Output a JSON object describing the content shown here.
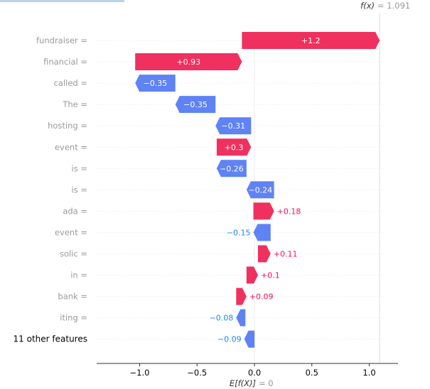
{
  "chart_data": {
    "type": "waterfall",
    "fx_label": "f(x)",
    "fx_value": "= 1.091",
    "ex_label": "E[f(X)]",
    "ex_value": "= 0",
    "xlim": [
      -1.38,
      1.22
    ],
    "xticks": [
      -1.0,
      -0.5,
      0.0,
      0.5,
      1.0
    ],
    "xtick_labels": [
      "−1.0",
      "−0.5",
      "0.0",
      "0.5",
      "1.0"
    ],
    "features": [
      {
        "label": "fundraiser =",
        "start": -0.109,
        "value": 1.2,
        "value_label": "+1.2",
        "label_pos": "inside"
      },
      {
        "label": "financial =",
        "start": -1.039,
        "value": 0.93,
        "value_label": "+0.93",
        "label_pos": "inside"
      },
      {
        "label": "called =",
        "start": -0.689,
        "value": -0.35,
        "value_label": "−0.35",
        "label_pos": "inside"
      },
      {
        "label": "The =",
        "start": -0.339,
        "value": -0.35,
        "value_label": "−0.35",
        "label_pos": "inside"
      },
      {
        "label": "hosting =",
        "start": -0.029,
        "value": -0.31,
        "value_label": "−0.31",
        "label_pos": "inside"
      },
      {
        "label": "event =",
        "start": -0.329,
        "value": 0.3,
        "value_label": "+0.3",
        "label_pos": "inside"
      },
      {
        "label": "is =",
        "start": -0.069,
        "value": -0.26,
        "value_label": "−0.26",
        "label_pos": "inside"
      },
      {
        "label": "is =",
        "start": 0.171,
        "value": -0.24,
        "value_label": "−0.24",
        "label_pos": "inside"
      },
      {
        "label": "ada =",
        "start": -0.009,
        "value": 0.18,
        "value_label": "+0.18",
        "label_pos": "right"
      },
      {
        "label": "event =",
        "start": 0.141,
        "value": -0.15,
        "value_label": "−0.15",
        "label_pos": "left"
      },
      {
        "label": "solic =",
        "start": 0.031,
        "value": 0.11,
        "value_label": "+0.11",
        "label_pos": "right"
      },
      {
        "label": "in =",
        "start": -0.069,
        "value": 0.1,
        "value_label": "+0.1",
        "label_pos": "right"
      },
      {
        "label": "bank =",
        "start": -0.159,
        "value": 0.09,
        "value_label": "+0.09",
        "label_pos": "right"
      },
      {
        "label": "iting =",
        "start": -0.079,
        "value": -0.08,
        "value_label": "−0.08",
        "label_pos": "left"
      },
      {
        "label": "11 other features",
        "start": 0.001,
        "value": -0.09,
        "value_label": "−0.09",
        "label_pos": "left"
      }
    ],
    "colors": {
      "positive": "#ff0d57",
      "negative": "#1e88e5",
      "positive_fill": "#f0305e",
      "negative_fill": "#5f82f5",
      "text_muted": "#999999",
      "axis": "#333333",
      "gridline": "#e6e6e6"
    }
  }
}
